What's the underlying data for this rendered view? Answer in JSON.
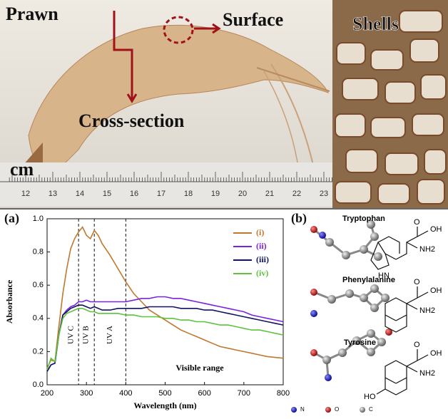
{
  "photo": {
    "labels": {
      "prawn": "Prawn",
      "surface": "Surface",
      "cross_section": "Cross-section",
      "shells": "Shells",
      "unit": "cm"
    },
    "ruler": [
      "12",
      "13",
      "14",
      "15",
      "16",
      "17",
      "18",
      "19",
      "20",
      "21",
      "22",
      "23"
    ]
  },
  "panels": {
    "a": "(a)",
    "b": "(b)"
  },
  "chart_data": {
    "type": "line",
    "x_label": "Wavelength (nm)",
    "y_label": "Absorbance",
    "xlim": [
      200,
      800
    ],
    "xticks": [
      200,
      300,
      400,
      500,
      600,
      700,
      800
    ],
    "ylim": [
      0,
      1
    ],
    "yticks": [
      {
        "value": 0,
        "label": "0.0"
      },
      0.2,
      0.4,
      0.6,
      0.8,
      {
        "value": 1,
        "label": "1.0"
      }
    ],
    "legend": "upper right",
    "vlines": [
      280,
      320,
      400
    ],
    "regions": [
      "UV C",
      "UV B",
      "UV A",
      "Visible range"
    ],
    "x": [
      200,
      210,
      220,
      230,
      240,
      250,
      260,
      270,
      280,
      290,
      300,
      310,
      320,
      330,
      340,
      360,
      380,
      400,
      420,
      440,
      460,
      480,
      500,
      520,
      540,
      560,
      580,
      600,
      620,
      640,
      660,
      680,
      700,
      720,
      740,
      760,
      780,
      800
    ],
    "series": [
      {
        "name": "(i)",
        "color": "#c0782e",
        "values": [
          0.1,
          0.15,
          0.14,
          0.35,
          0.55,
          0.7,
          0.82,
          0.88,
          0.92,
          0.95,
          0.9,
          0.88,
          0.93,
          0.9,
          0.85,
          0.78,
          0.7,
          0.62,
          0.55,
          0.5,
          0.45,
          0.42,
          0.39,
          0.36,
          0.33,
          0.31,
          0.29,
          0.27,
          0.25,
          0.23,
          0.22,
          0.21,
          0.2,
          0.19,
          0.18,
          0.17,
          0.165,
          0.16
        ]
      },
      {
        "name": "(ii)",
        "color": "#7a22e0",
        "values": [
          0.08,
          0.12,
          0.13,
          0.3,
          0.42,
          0.45,
          0.47,
          0.48,
          0.5,
          0.5,
          0.51,
          0.5,
          0.5,
          0.5,
          0.5,
          0.5,
          0.5,
          0.5,
          0.51,
          0.52,
          0.52,
          0.53,
          0.53,
          0.52,
          0.52,
          0.51,
          0.5,
          0.49,
          0.48,
          0.47,
          0.46,
          0.45,
          0.44,
          0.42,
          0.41,
          0.4,
          0.39,
          0.38
        ]
      },
      {
        "name": "(iii)",
        "color": "#12125e",
        "values": [
          0.08,
          0.12,
          0.13,
          0.3,
          0.42,
          0.44,
          0.46,
          0.47,
          0.48,
          0.48,
          0.47,
          0.46,
          0.47,
          0.46,
          0.45,
          0.45,
          0.46,
          0.46,
          0.46,
          0.46,
          0.47,
          0.47,
          0.47,
          0.47,
          0.46,
          0.46,
          0.46,
          0.45,
          0.45,
          0.44,
          0.43,
          0.42,
          0.41,
          0.4,
          0.39,
          0.38,
          0.37,
          0.36
        ]
      },
      {
        "name": "(iv)",
        "color": "#5cc43c",
        "values": [
          0.09,
          0.16,
          0.14,
          0.3,
          0.4,
          0.43,
          0.44,
          0.45,
          0.46,
          0.46,
          0.45,
          0.44,
          0.44,
          0.43,
          0.43,
          0.43,
          0.43,
          0.42,
          0.42,
          0.41,
          0.41,
          0.41,
          0.4,
          0.4,
          0.39,
          0.39,
          0.38,
          0.38,
          0.37,
          0.36,
          0.36,
          0.35,
          0.34,
          0.33,
          0.33,
          0.32,
          0.31,
          0.3
        ]
      }
    ]
  },
  "molecules": {
    "items": [
      {
        "name": "Tryptophan",
        "groups": [
          "OH",
          "O",
          "NH2",
          "HN"
        ]
      },
      {
        "name": "Phenylalanine",
        "groups": [
          "OH",
          "O",
          "NH2"
        ]
      },
      {
        "name": "Tyrosine",
        "groups": [
          "OH",
          "O",
          "NH2",
          "HO"
        ]
      }
    ],
    "legend": [
      "N",
      "O",
      "C"
    ]
  }
}
